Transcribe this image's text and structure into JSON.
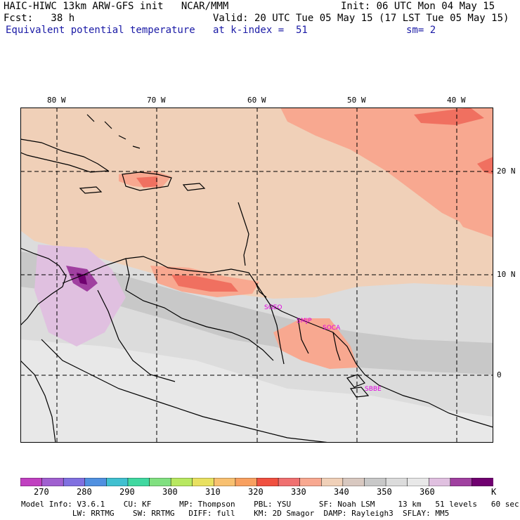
{
  "header": {
    "line1_left": "HAIC-HIWC 13km ARW-GFS init   NCAR/MMM",
    "line1_right": "Init: 06 UTC Mon 04 May 15",
    "line2_left": "Fcst:   38 h",
    "line2_right": "Valid: 20 UTC Tue 05 May 15 (17 LST Tue 05 May 15)",
    "field_name": "Equivalent potential temperature",
    "level": "at k-index =  51",
    "smoothing": "sm= 2"
  },
  "map": {
    "lon_labels": [
      "80 W",
      "70 W",
      "60 W",
      "50 W",
      "40 W"
    ],
    "lat_labels": [
      "20 N",
      "10 N",
      "0"
    ],
    "stations": [
      "SGEO",
      "SMJP",
      "SOCA",
      "SBBE"
    ]
  },
  "colorbar": {
    "unit": "K",
    "tick_labels": [
      "270",
      "280",
      "290",
      "300",
      "310",
      "320",
      "330",
      "340",
      "350",
      "360"
    ],
    "colors": [
      "#c040c0",
      "#a060d0",
      "#8070e0",
      "#5090e0",
      "#40c0d0",
      "#40d8a0",
      "#80e080",
      "#b8e860",
      "#e8e060",
      "#f8c070",
      "#f8a060",
      "#f05040",
      "#f07070",
      "#f8a890",
      "#f0d0b8",
      "#d8c8c0",
      "#c8c8c8",
      "#dcdcdc",
      "#e8e8e8",
      "#e0c0e0",
      "#a040a0",
      "#700070"
    ]
  },
  "footer": {
    "line1": "Model Info: V3.6.1    CU: KF      MP: Thompson    PBL: YSU      SF: Noah LSM     13 km   51 levels   60 sec",
    "line2": "           LW: RRTMG    SW: RRTMG   DIFF: full    KM: 2D Smagor  DAMP: Rayleigh3  SFLAY: MM5"
  }
}
